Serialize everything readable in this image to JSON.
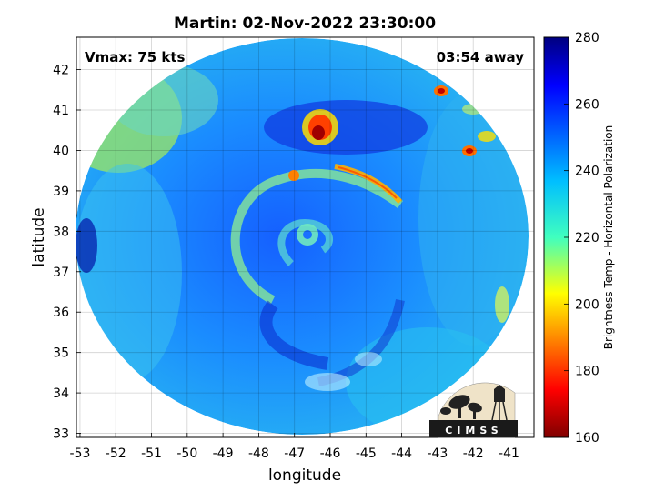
{
  "title": "Martin: 02-Nov-2022 23:30:00",
  "vmax_label": "Vmax: 75 kts",
  "away_label": "03:54 away",
  "xlabel": "longitude",
  "ylabel": "latitude",
  "x_ticks": [
    "-53",
    "-52",
    "-51",
    "-50",
    "-49",
    "-48",
    "-47",
    "-46",
    "-45",
    "-44",
    "-43",
    "-42",
    "-41"
  ],
  "y_ticks": [
    "33",
    "34",
    "35",
    "36",
    "37",
    "38",
    "39",
    "40",
    "41",
    "42"
  ],
  "colorbar": {
    "label": "Brightness Temp - Horizontal Polarization",
    "ticks": [
      "160",
      "180",
      "200",
      "220",
      "240",
      "260",
      "280"
    ],
    "range": [
      160,
      280
    ]
  },
  "logo_text": "CIMSS",
  "map_extent": {
    "lon": [
      -53.1,
      -40.3
    ],
    "lat": [
      32.9,
      42.8
    ]
  }
}
